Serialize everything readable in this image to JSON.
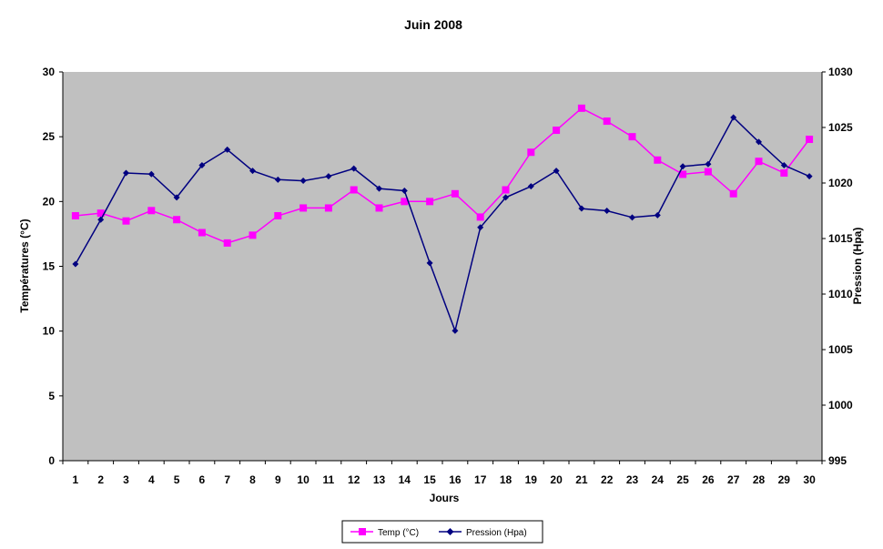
{
  "chart_data": {
    "type": "line",
    "title": "Juin 2008",
    "xlabel": "Jours",
    "ylabel_left": "Températures (°C)",
    "ylabel_right": "Pression (Hpa)",
    "x": [
      1,
      2,
      3,
      4,
      5,
      6,
      7,
      8,
      9,
      10,
      11,
      12,
      13,
      14,
      15,
      16,
      17,
      18,
      19,
      20,
      21,
      22,
      23,
      24,
      25,
      26,
      27,
      28,
      29,
      30
    ],
    "ylim_left": [
      0,
      30
    ],
    "yticks_left": [
      0,
      5,
      10,
      15,
      20,
      25,
      30
    ],
    "ylim_right": [
      995,
      1030
    ],
    "yticks_right": [
      995,
      1000,
      1005,
      1010,
      1015,
      1020,
      1025,
      1030
    ],
    "grid": false,
    "plot_background": "#c0c0c0",
    "legend_position": "bottom",
    "series": [
      {
        "name": "Temp (°C)",
        "axis": "left",
        "color": "#ff00ff",
        "marker": "square",
        "values": [
          18.9,
          19.1,
          18.5,
          19.3,
          18.6,
          17.6,
          16.8,
          17.4,
          18.9,
          19.5,
          19.5,
          20.9,
          19.5,
          20.0,
          20.0,
          20.6,
          18.8,
          20.9,
          23.8,
          25.5,
          27.2,
          26.2,
          25.0,
          23.2,
          22.1,
          22.3,
          20.6,
          23.1,
          22.2,
          24.8
        ]
      },
      {
        "name": "Pression (Hpa)",
        "axis": "right",
        "color": "#000080",
        "marker": "diamond",
        "values": [
          1012.7,
          1016.7,
          1020.9,
          1020.8,
          1018.7,
          1021.6,
          1023.0,
          1021.1,
          1020.3,
          1020.2,
          1020.6,
          1021.3,
          1019.5,
          1019.3,
          1012.8,
          1006.7,
          1016.0,
          1018.7,
          1019.7,
          1021.1,
          1017.7,
          1017.5,
          1016.9,
          1017.1,
          1021.5,
          1021.7,
          1025.9,
          1023.7,
          1021.6,
          1020.6
        ]
      }
    ]
  }
}
